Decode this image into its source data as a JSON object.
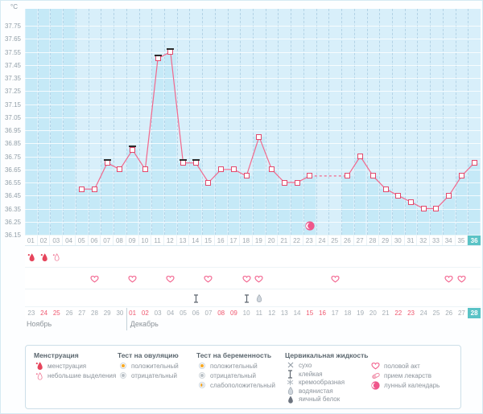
{
  "chart_data": {
    "type": "line",
    "unit": "°C",
    "ylim": [
      36.15,
      37.75
    ],
    "axis_top": 37.88,
    "yticks": [
      37.75,
      37.65,
      37.55,
      37.45,
      37.35,
      37.25,
      37.15,
      37.05,
      36.95,
      36.85,
      36.75,
      36.65,
      36.55,
      36.45,
      36.35,
      36.25,
      36.15
    ],
    "days": [
      "01",
      "02",
      "03",
      "04",
      "05",
      "06",
      "07",
      "08",
      "09",
      "10",
      "11",
      "12",
      "13",
      "14",
      "15",
      "16",
      "17",
      "18",
      "19",
      "20",
      "21",
      "22",
      "23",
      "24",
      "25",
      "26",
      "27",
      "28",
      "29",
      "30",
      "31",
      "32",
      "33",
      "34",
      "35",
      "36"
    ],
    "temps": [
      null,
      null,
      null,
      null,
      36.5,
      36.5,
      36.7,
      36.65,
      36.8,
      36.65,
      37.5,
      37.55,
      36.7,
      36.7,
      36.55,
      36.65,
      36.65,
      36.6,
      36.9,
      36.65,
      36.55,
      36.55,
      36.6,
      null,
      null,
      36.6,
      36.75,
      36.6,
      36.5,
      36.45,
      36.4,
      36.35,
      36.35,
      36.45,
      36.6,
      36.7
    ],
    "no_data_full_columns": [
      1,
      2,
      3,
      4
    ],
    "missing_interpolated_days": [
      24,
      25
    ],
    "late_measure_marker_days": [
      7,
      9,
      11,
      12,
      13,
      14
    ],
    "moon_event": {
      "day": 23,
      "temp_level": 36.22
    },
    "dates": [
      "23",
      "24",
      "25",
      "26",
      "27",
      "28",
      "29",
      "30",
      "01",
      "02",
      "03",
      "04",
      "05",
      "06",
      "07",
      "08",
      "09",
      "10",
      "11",
      "12",
      "13",
      "14",
      "15",
      "16",
      "17",
      "18",
      "19",
      "20",
      "21",
      "22",
      "23",
      "24",
      "25",
      "26",
      "27",
      "28"
    ],
    "weekend_date_days": [
      2,
      3,
      9,
      10,
      16,
      17,
      23,
      24,
      30,
      31
    ],
    "current_day": 36,
    "line_color": "#f2688c",
    "marker_border_color": "#e2486b",
    "bar_color": "#c5e9f7",
    "plot_bg": "#d8effa",
    "highlight_color": "#5ac3c6",
    "weekend_color": "#ef5870"
  },
  "months": [
    {
      "label": "Ноябрь",
      "start_day": 1
    },
    {
      "label": "Декабрь",
      "start_day": 9
    }
  ],
  "events": {
    "menstruation": [
      {
        "day": 1,
        "type": "менструация"
      },
      {
        "day": 2,
        "type": "менструация"
      },
      {
        "day": 3,
        "type": "небольшие выделения"
      }
    ],
    "intercourse_days": [
      6,
      9,
      12,
      15,
      18,
      19,
      25,
      34,
      35
    ],
    "cervical_fluid": [
      {
        "day": 14,
        "type": "клейкая"
      },
      {
        "day": 18,
        "type": "клейкая"
      },
      {
        "day": 19,
        "type": "водянистая"
      }
    ],
    "lunar_calendar_days": [
      23
    ]
  },
  "legend": {
    "groups": [
      {
        "title": "Менструация",
        "items": [
          {
            "icon": "drop-red",
            "label": "менструация"
          },
          {
            "icon": "drop-outline",
            "label": "небольшие выделения"
          }
        ]
      },
      {
        "title": "Тест на овуляцию",
        "items": [
          {
            "icon": "test-positive",
            "label": "положительный"
          },
          {
            "icon": "test-negative",
            "label": "отрицательный"
          }
        ]
      },
      {
        "title": "Тест на беременность",
        "items": [
          {
            "icon": "test-positive",
            "label": "положительный"
          },
          {
            "icon": "test-negative",
            "label": "отрицательный"
          },
          {
            "icon": "test-weak",
            "label": "слабоположительный"
          }
        ]
      },
      {
        "title": "Цервикальная жидкость",
        "items": [
          {
            "icon": "dry",
            "label": "сухо"
          },
          {
            "icon": "sticky",
            "label": "клейкая"
          },
          {
            "icon": "creamy",
            "label": "кремообразная"
          },
          {
            "icon": "watery",
            "label": "водянистая"
          },
          {
            "icon": "eggwhite",
            "label": "яичный белок"
          }
        ]
      },
      {
        "title": "",
        "items": [
          {
            "icon": "heart",
            "label": "половой акт"
          },
          {
            "icon": "pill",
            "label": "прием лекарств"
          },
          {
            "icon": "moon",
            "label": "лунный календарь"
          }
        ]
      }
    ]
  }
}
